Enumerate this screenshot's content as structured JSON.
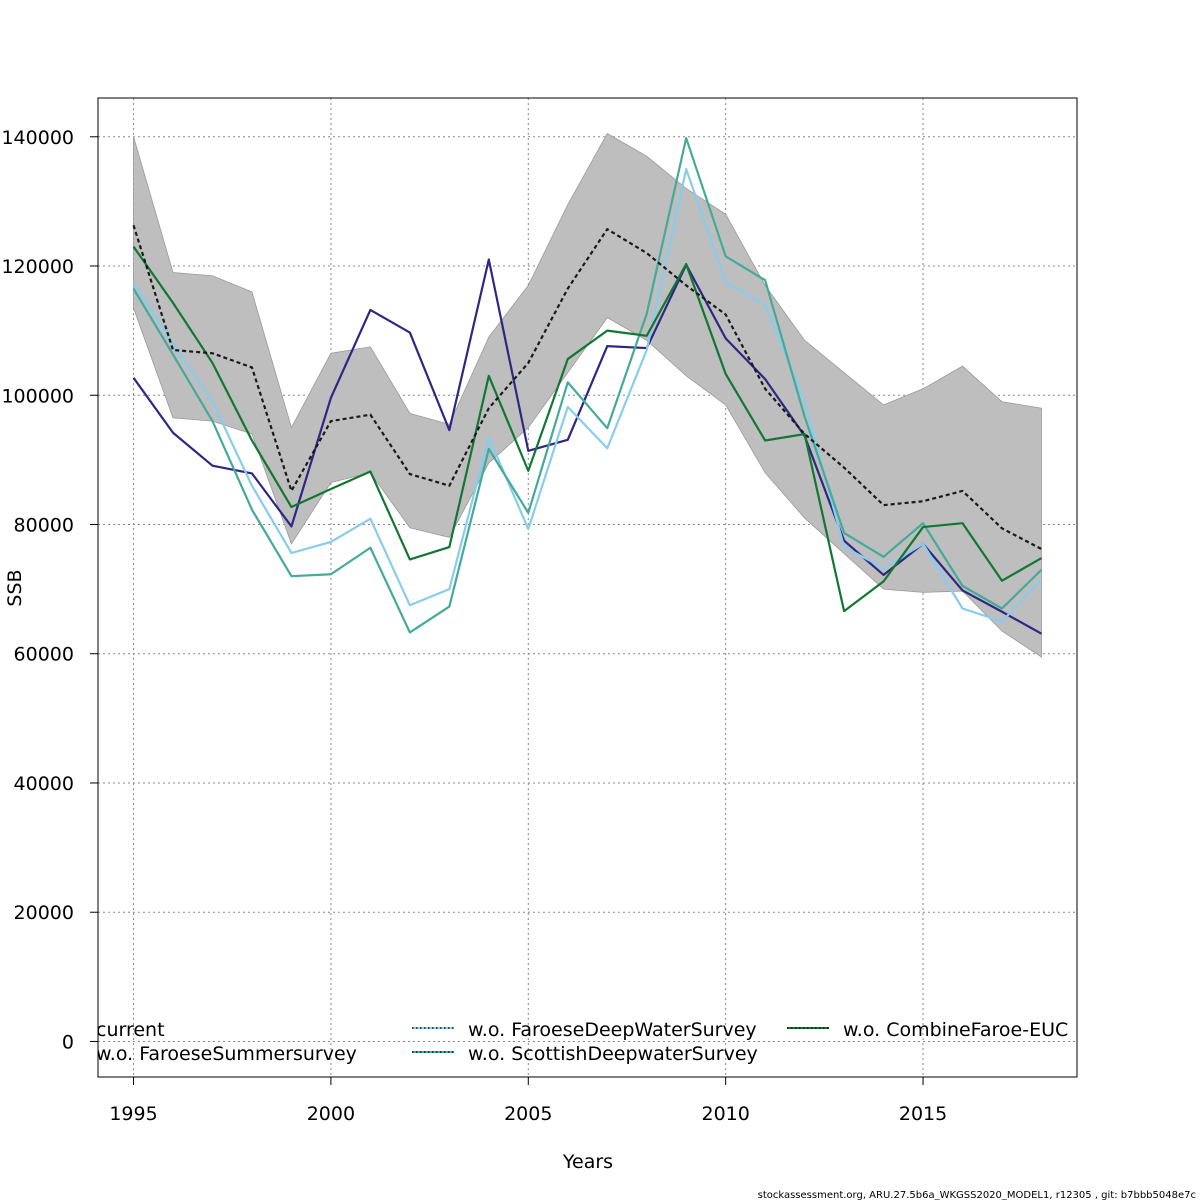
{
  "chart_data": {
    "type": "line",
    "xlabel": "Years",
    "ylabel": "SSB",
    "xlim": [
      1994.1,
      2018.9
    ],
    "ylim": [
      -5500,
      146000
    ],
    "x_ticks": [
      1995,
      2000,
      2005,
      2010,
      2015
    ],
    "y_ticks": [
      0,
      20000,
      40000,
      60000,
      80000,
      100000,
      120000,
      140000
    ],
    "grid": true,
    "legend_position": "bottom",
    "x": [
      1995,
      1996,
      1997,
      1998,
      1999,
      2000,
      2001,
      2002,
      2003,
      2004,
      2005,
      2006,
      2007,
      2008,
      2009,
      2010,
      2011,
      2012,
      2013,
      2014,
      2015,
      2016,
      2017,
      2018
    ],
    "confidence_band": {
      "color": "#bebebe",
      "upper": [
        140000,
        119000,
        118500,
        116000,
        95000,
        106500,
        107500,
        97200,
        95500,
        109000,
        117000,
        129500,
        140500,
        137000,
        132000,
        128000,
        117000,
        108500,
        103500,
        98500,
        101000,
        104500,
        99000,
        98000
      ],
      "lower": [
        113500,
        96500,
        96000,
        94000,
        77000,
        86500,
        88000,
        79500,
        78000,
        89500,
        95000,
        103500,
        112000,
        108500,
        103000,
        98500,
        88000,
        81000,
        75500,
        70000,
        69500,
        69700,
        63500,
        59500
      ]
    },
    "series": [
      {
        "name": "current",
        "color": "#1a1a1a",
        "dashed": true,
        "show_in_legend": true,
        "values": [
          126300,
          107000,
          106500,
          104300,
          85200,
          96000,
          97000,
          87800,
          86000,
          98000,
          105000,
          116500,
          125700,
          122000,
          117000,
          112500,
          101000,
          94000,
          88800,
          83000,
          83600,
          85200,
          79400,
          76200
        ]
      },
      {
        "name": "w.o. FaroeseSummersurvey",
        "color": "#2e2784",
        "dashed": false,
        "show_in_legend": true,
        "values": [
          102700,
          94200,
          89100,
          87900,
          79700,
          99600,
          113200,
          109700,
          94600,
          121000,
          91400,
          93100,
          107600,
          107300,
          120200,
          108800,
          102500,
          93700,
          77500,
          72200,
          77000,
          69800,
          66500,
          63100
        ]
      },
      {
        "name": "w.o. FaroeseDeepWaterSurvey",
        "color": "#88ccee",
        "dashed": false,
        "show_in_legend": true,
        "values": [
          117300,
          108000,
          99000,
          86000,
          75600,
          77300,
          80900,
          67500,
          70000,
          93500,
          79300,
          98200,
          91800,
          107000,
          135000,
          117500,
          114000,
          99000,
          76500,
          73300,
          77000,
          67000,
          65000,
          71500
        ]
      },
      {
        "name": "w.o. ScottishDeepwaterSurvey",
        "color": "#44aa99",
        "dashed": false,
        "show_in_legend": true,
        "values": [
          116500,
          106300,
          96000,
          82300,
          72000,
          72300,
          76400,
          63300,
          67300,
          91700,
          81800,
          102000,
          94900,
          112600,
          139800,
          121500,
          117800,
          96700,
          78700,
          75000,
          80200,
          70500,
          67000,
          73000
        ]
      },
      {
        "name": "w.o. CombineFaroe-EUC",
        "color": "#117733",
        "dashed": false,
        "show_in_legend": true,
        "values": [
          123000,
          114300,
          105000,
          93000,
          82700,
          85500,
          88200,
          74600,
          76500,
          103000,
          88300,
          105600,
          110000,
          109200,
          120300,
          103300,
          93000,
          94000,
          66600,
          71200,
          79600,
          80200,
          71300,
          74800
        ]
      }
    ]
  },
  "footer_text": "stockassessment.org, ARU.27.5b6a_WKGSS2020_MODEL1, r12305 , git: b7bbb5048e7c"
}
